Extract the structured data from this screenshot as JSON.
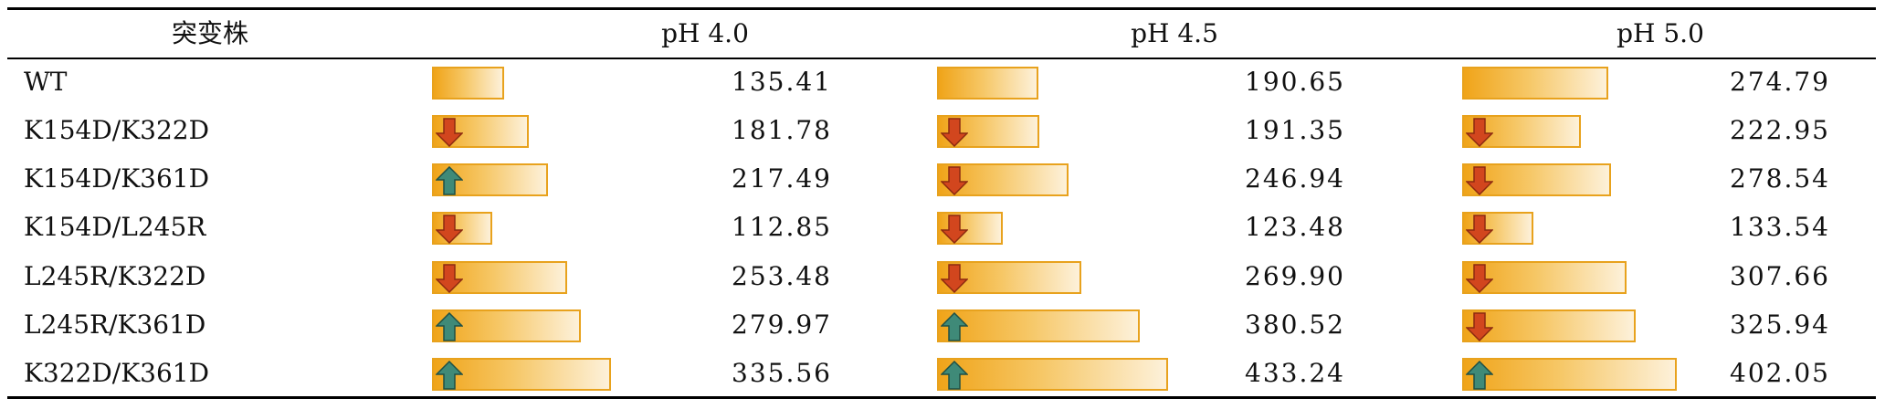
{
  "table": {
    "headers": [
      "突变株",
      "pH 4.0",
      "pH 4.5",
      "pH 5.0"
    ],
    "scale_max": 433.24,
    "rows": [
      {
        "name": "WT",
        "cells": [
          {
            "value": "135.41",
            "trend": "none"
          },
          {
            "value": "190.65",
            "trend": "none"
          },
          {
            "value": "274.79",
            "trend": "none"
          }
        ]
      },
      {
        "name": "K154D/K322D",
        "cells": [
          {
            "value": "181.78",
            "trend": "down"
          },
          {
            "value": "191.35",
            "trend": "down"
          },
          {
            "value": "222.95",
            "trend": "down"
          }
        ]
      },
      {
        "name": "K154D/K361D",
        "cells": [
          {
            "value": "217.49",
            "trend": "up"
          },
          {
            "value": "246.94",
            "trend": "down"
          },
          {
            "value": "278.54",
            "trend": "down"
          }
        ]
      },
      {
        "name": "K154D/L245R",
        "cells": [
          {
            "value": "112.85",
            "trend": "down"
          },
          {
            "value": "123.48",
            "trend": "down"
          },
          {
            "value": "133.54",
            "trend": "down"
          }
        ]
      },
      {
        "name": "L245R/K322D",
        "cells": [
          {
            "value": "253.48",
            "trend": "down"
          },
          {
            "value": "269.90",
            "trend": "down"
          },
          {
            "value": "307.66",
            "trend": "down"
          }
        ]
      },
      {
        "name": "L245R/K361D",
        "cells": [
          {
            "value": "279.97",
            "trend": "up"
          },
          {
            "value": "380.52",
            "trend": "up"
          },
          {
            "value": "325.94",
            "trend": "down"
          }
        ]
      },
      {
        "name": "K322D/K361D",
        "cells": [
          {
            "value": "335.56",
            "trend": "up"
          },
          {
            "value": "433.24",
            "trend": "up"
          },
          {
            "value": "402.05",
            "trend": "up"
          }
        ]
      }
    ]
  },
  "colors": {
    "bar_border": "#e8a21d",
    "arrow_up": "#3f8a78",
    "arrow_down": "#d2461e"
  },
  "icons": {
    "up": "arrow-up-icon",
    "down": "arrow-down-icon"
  }
}
